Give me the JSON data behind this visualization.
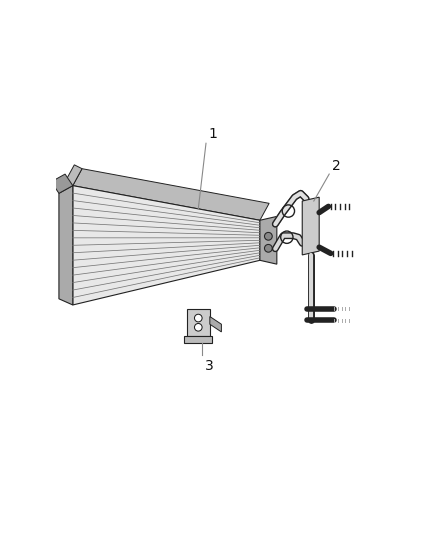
{
  "background_color": "#ffffff",
  "figure_width": 4.38,
  "figure_height": 5.33,
  "dpi": 100,
  "label1": "1",
  "label2": "2",
  "label3": "3",
  "callout_line_color": "#888888",
  "text_color": "#111111",
  "line_width": 0.8,
  "edge_color": "#222222",
  "fin_color_light": "#d8d8d8",
  "fin_color_dark": "#aaaaaa",
  "tank_color": "#999999"
}
